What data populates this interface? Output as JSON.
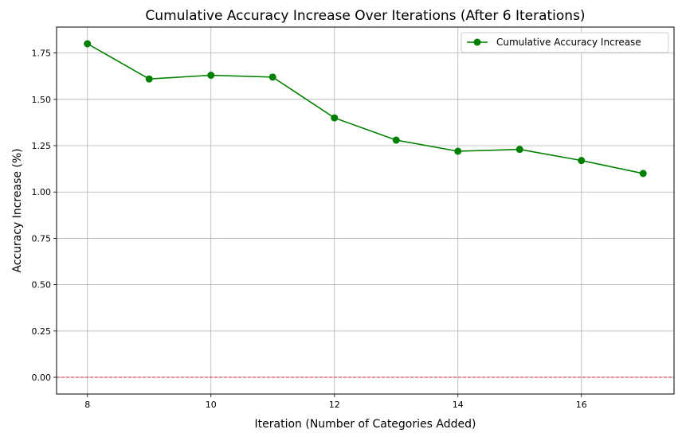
{
  "chart_data": {
    "type": "line",
    "title": "Cumulative Accuracy Increase Over Iterations (After 6 Iterations)",
    "xlabel": "Iteration (Number of Categories Added)",
    "ylabel": "Accuracy Increase (%)",
    "xlim": [
      7.5,
      17.5
    ],
    "ylim": [
      -0.09,
      1.89
    ],
    "xticks": [
      8,
      10,
      12,
      14,
      16
    ],
    "xtick_labels": [
      "8",
      "10",
      "12",
      "14",
      "16"
    ],
    "yticks": [
      0.0,
      0.25,
      0.5,
      0.75,
      1.0,
      1.25,
      1.5,
      1.75
    ],
    "ytick_labels": [
      "0.00",
      "0.25",
      "0.50",
      "0.75",
      "1.00",
      "1.25",
      "1.50",
      "1.75"
    ],
    "grid": true,
    "legend_position": "top-right",
    "series": [
      {
        "name": "Cumulative Accuracy Increase",
        "color": "#008000",
        "marker": "circle",
        "x": [
          8,
          9,
          10,
          11,
          12,
          13,
          14,
          15,
          16,
          17
        ],
        "y": [
          1.8,
          1.61,
          1.63,
          1.62,
          1.4,
          1.28,
          1.22,
          1.23,
          1.17,
          1.1
        ]
      }
    ],
    "reference_lines": [
      {
        "y": 0,
        "color": "#d62728",
        "style": "dashed"
      }
    ]
  }
}
